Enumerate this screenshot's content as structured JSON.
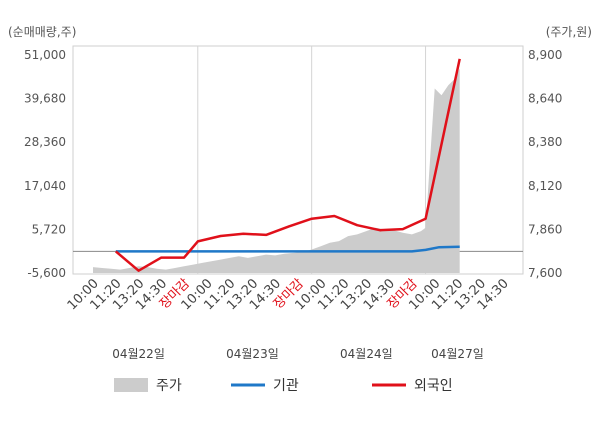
{
  "chart_data": {
    "type": "line",
    "left_axis_title": "(순매매량,주)",
    "right_axis_title": "(주가,원)",
    "left_ticks": [
      "51,000",
      "39,680",
      "28,360",
      "17,040",
      "5,720",
      "-5,600"
    ],
    "right_ticks": [
      "8,900",
      "8,640",
      "8,380",
      "8,120",
      "7,860",
      "7,600"
    ],
    "left_range": [
      -5600,
      51000
    ],
    "right_range": [
      7600,
      8900
    ],
    "x_labels": [
      {
        "text": "10:00",
        "highlight": false
      },
      {
        "text": "11:20",
        "highlight": false
      },
      {
        "text": "13:20",
        "highlight": false
      },
      {
        "text": "14:30",
        "highlight": false
      },
      {
        "text": "장마감",
        "highlight": true
      },
      {
        "text": "10:00",
        "highlight": false
      },
      {
        "text": "11:20",
        "highlight": false
      },
      {
        "text": "13:20",
        "highlight": false
      },
      {
        "text": "14:30",
        "highlight": false
      },
      {
        "text": "장마감",
        "highlight": true
      },
      {
        "text": "10:00",
        "highlight": false
      },
      {
        "text": "11:20",
        "highlight": false
      },
      {
        "text": "13:20",
        "highlight": false
      },
      {
        "text": "14:30",
        "highlight": false
      },
      {
        "text": "장마감",
        "highlight": true
      },
      {
        "text": "10:00",
        "highlight": false
      },
      {
        "text": "11:20",
        "highlight": false
      },
      {
        "text": "13:20",
        "highlight": false
      },
      {
        "text": "14:30",
        "highlight": false
      }
    ],
    "date_labels": [
      {
        "text": "04월22일",
        "at": 2
      },
      {
        "text": "04월23일",
        "at": 7
      },
      {
        "text": "04월24일",
        "at": 12
      },
      {
        "text": "04월27일",
        "at": 16
      }
    ],
    "vertical_lines_at": [
      4.6,
      9.6,
      14.6
    ],
    "zero_line_left": 0,
    "series": [
      {
        "name": "주가",
        "axis": "right",
        "kind": "area",
        "color": "#cccccc",
        "points": [
          [
            0.0,
            7635
          ],
          [
            0.4,
            7630
          ],
          [
            0.8,
            7625
          ],
          [
            1.2,
            7620
          ],
          [
            1.6,
            7630
          ],
          [
            2.0,
            7640
          ],
          [
            2.4,
            7635
          ],
          [
            2.8,
            7625
          ],
          [
            3.2,
            7620
          ],
          [
            3.6,
            7630
          ],
          [
            4.0,
            7640
          ],
          [
            4.4,
            7650
          ],
          [
            4.8,
            7660
          ],
          [
            5.2,
            7670
          ],
          [
            5.6,
            7680
          ],
          [
            6.0,
            7690
          ],
          [
            6.4,
            7700
          ],
          [
            6.8,
            7690
          ],
          [
            7.2,
            7700
          ],
          [
            7.6,
            7710
          ],
          [
            8.0,
            7705
          ],
          [
            8.4,
            7715
          ],
          [
            8.8,
            7720
          ],
          [
            9.2,
            7725
          ],
          [
            9.6,
            7740
          ],
          [
            10.0,
            7760
          ],
          [
            10.4,
            7780
          ],
          [
            10.8,
            7790
          ],
          [
            11.2,
            7820
          ],
          [
            11.6,
            7830
          ],
          [
            12.0,
            7850
          ],
          [
            12.4,
            7870
          ],
          [
            12.8,
            7860
          ],
          [
            13.2,
            7855
          ],
          [
            13.6,
            7840
          ],
          [
            14.0,
            7830
          ],
          [
            14.4,
            7850
          ],
          [
            14.6,
            7870
          ],
          [
            15.0,
            8700
          ],
          [
            15.3,
            8660
          ],
          [
            15.6,
            8720
          ],
          [
            15.9,
            8760
          ],
          [
            16.1,
            8820
          ]
        ]
      },
      {
        "name": "기관",
        "axis": "left",
        "kind": "line",
        "color": "#1f78c8",
        "points": [
          [
            1.0,
            0
          ],
          [
            4.6,
            0
          ],
          [
            9.6,
            0
          ],
          [
            14.0,
            0
          ],
          [
            14.6,
            400
          ],
          [
            15.2,
            1100
          ],
          [
            16.1,
            1200
          ]
        ]
      },
      {
        "name": "외국인",
        "axis": "left",
        "kind": "line",
        "color": "#e0101a",
        "points": [
          [
            1.0,
            0
          ],
          [
            2.0,
            -5000
          ],
          [
            3.0,
            -1600
          ],
          [
            4.0,
            -1600
          ],
          [
            4.6,
            2600
          ],
          [
            5.6,
            4000
          ],
          [
            6.6,
            4600
          ],
          [
            7.6,
            4300
          ],
          [
            8.6,
            6500
          ],
          [
            9.6,
            8500
          ],
          [
            10.6,
            9200
          ],
          [
            11.6,
            6800
          ],
          [
            12.6,
            5500
          ],
          [
            13.6,
            5800
          ],
          [
            14.6,
            8500
          ],
          [
            16.1,
            50000
          ]
        ]
      }
    ],
    "legend": [
      {
        "name": "주가",
        "color": "#cccccc",
        "kind": "box"
      },
      {
        "name": "기관",
        "color": "#1f78c8",
        "kind": "line"
      },
      {
        "name": "외국인",
        "color": "#e0101a",
        "kind": "line"
      }
    ]
  }
}
